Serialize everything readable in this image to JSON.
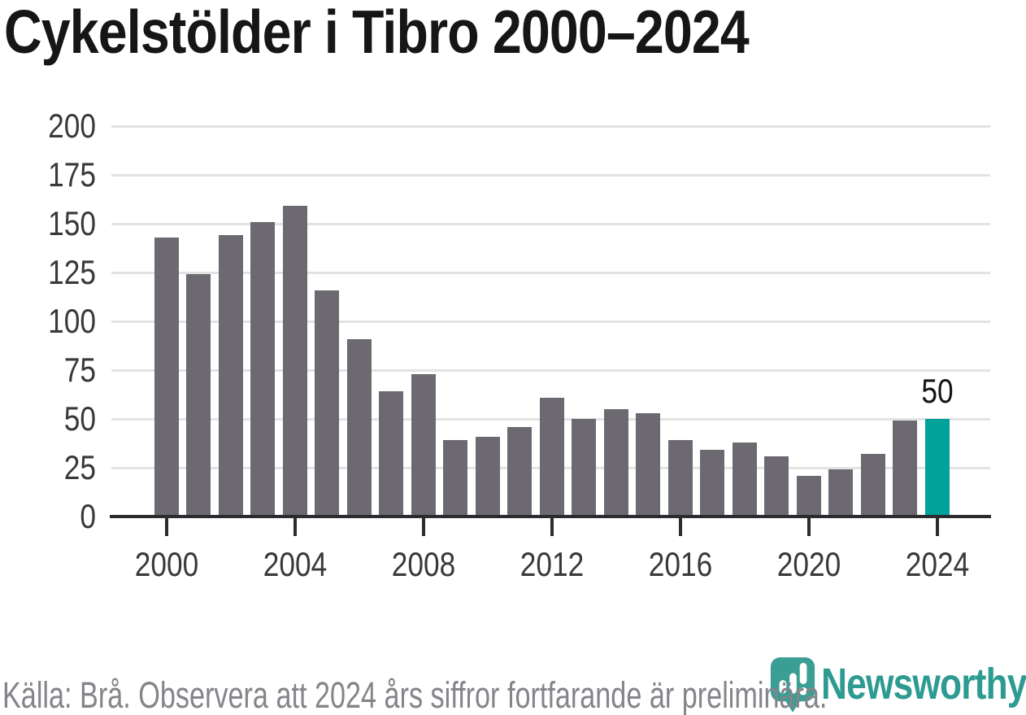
{
  "title": "Cykelstölder i Tibro 2000–2024",
  "chart_data": {
    "type": "bar",
    "title": "Cykelstölder i Tibro 2000–2024",
    "categories": [
      2000,
      2001,
      2002,
      2003,
      2004,
      2005,
      2006,
      2007,
      2008,
      2009,
      2010,
      2011,
      2012,
      2013,
      2014,
      2015,
      2016,
      2017,
      2018,
      2019,
      2020,
      2021,
      2022,
      2023,
      2024
    ],
    "values": [
      143,
      124,
      144,
      151,
      159,
      116,
      91,
      64,
      73,
      39,
      41,
      46,
      61,
      50,
      55,
      53,
      39,
      34,
      38,
      31,
      21,
      24,
      32,
      49,
      50
    ],
    "xlabel": "",
    "ylabel": "",
    "ylim": [
      0,
      200
    ],
    "yticks": [
      0,
      25,
      50,
      75,
      100,
      125,
      150,
      175,
      200
    ],
    "xtick_years": [
      2000,
      2004,
      2008,
      2012,
      2016,
      2020,
      2024
    ],
    "grid": "horizontal",
    "legend": "none",
    "highlight_year": 2024,
    "value_label": {
      "year": 2024,
      "text": "50"
    }
  },
  "footer": {
    "source_note": "Källa: Brå. Observera att 2024 års siffror fortfarande är preliminära."
  },
  "branding": {
    "name": "Newsworthy",
    "logo_icon": "newsworthy-pin-barchart-icon"
  },
  "colors": {
    "bar": "#6C6A70",
    "highlight": "#00A29A",
    "gridline": "#E3E3E3",
    "axis": "#2C2B2E",
    "title_text": "#161616",
    "tick_text": "#39383C",
    "value_text": "#141414",
    "footer_text": "#85848A",
    "wordmark_teal": "#2D9B91",
    "pin_teal": "#3B9E95"
  }
}
